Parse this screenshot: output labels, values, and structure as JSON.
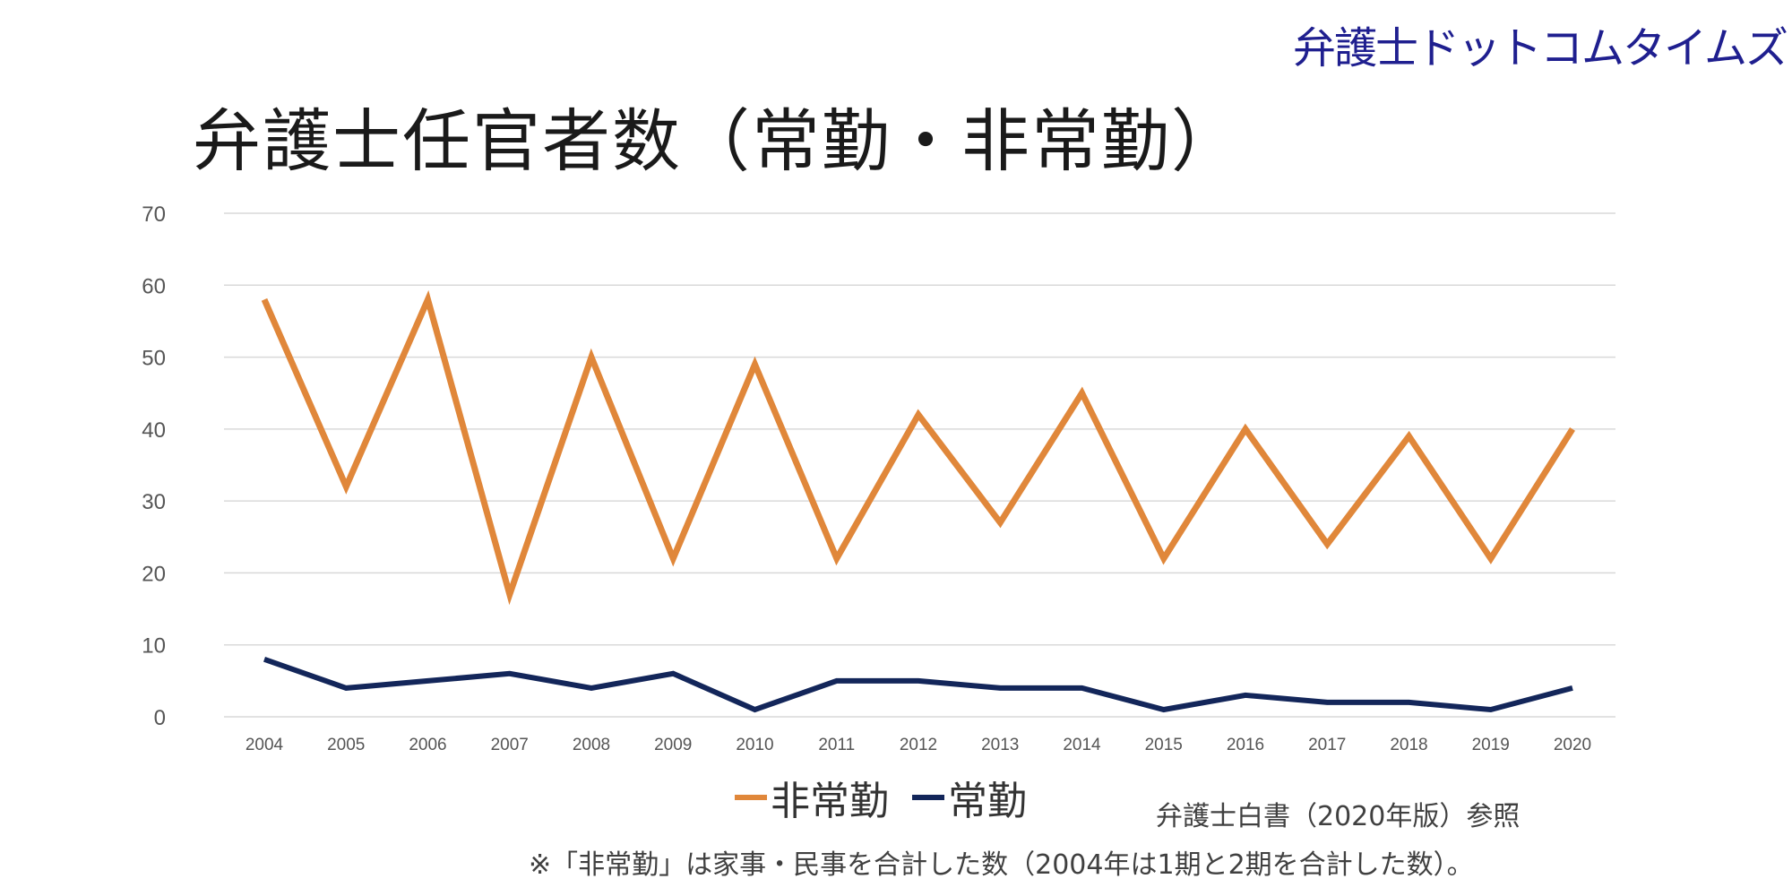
{
  "brand": "弁護士ドットコムタイムズ",
  "source": "弁護士白書（2020年版）参照",
  "note": "※「非常勤」は家事・民事を合計した数（2004年は1期と2期を合計した数）。",
  "chart_data": {
    "type": "line",
    "title": "弁護士任官者数（常勤・非常勤）",
    "xlabel": "",
    "ylabel": "",
    "categories": [
      "2004",
      "2005",
      "2006",
      "2007",
      "2008",
      "2009",
      "2010",
      "2011",
      "2012",
      "2013",
      "2014",
      "2015",
      "2016",
      "2017",
      "2018",
      "2019",
      "2020"
    ],
    "ylim": [
      0,
      70
    ],
    "yticks": [
      0,
      10,
      20,
      30,
      40,
      50,
      60,
      70
    ],
    "grid": true,
    "legend_position": "bottom",
    "series": [
      {
        "name": "非常勤",
        "color": "#e0873a",
        "values": [
          58,
          32,
          58,
          17,
          50,
          22,
          49,
          22,
          42,
          27,
          45,
          22,
          40,
          24,
          39,
          22,
          40
        ]
      },
      {
        "name": "常勤",
        "color": "#13265a",
        "values": [
          8,
          4,
          5,
          6,
          4,
          6,
          1,
          5,
          5,
          4,
          4,
          1,
          3,
          2,
          2,
          1,
          4
        ]
      }
    ]
  }
}
